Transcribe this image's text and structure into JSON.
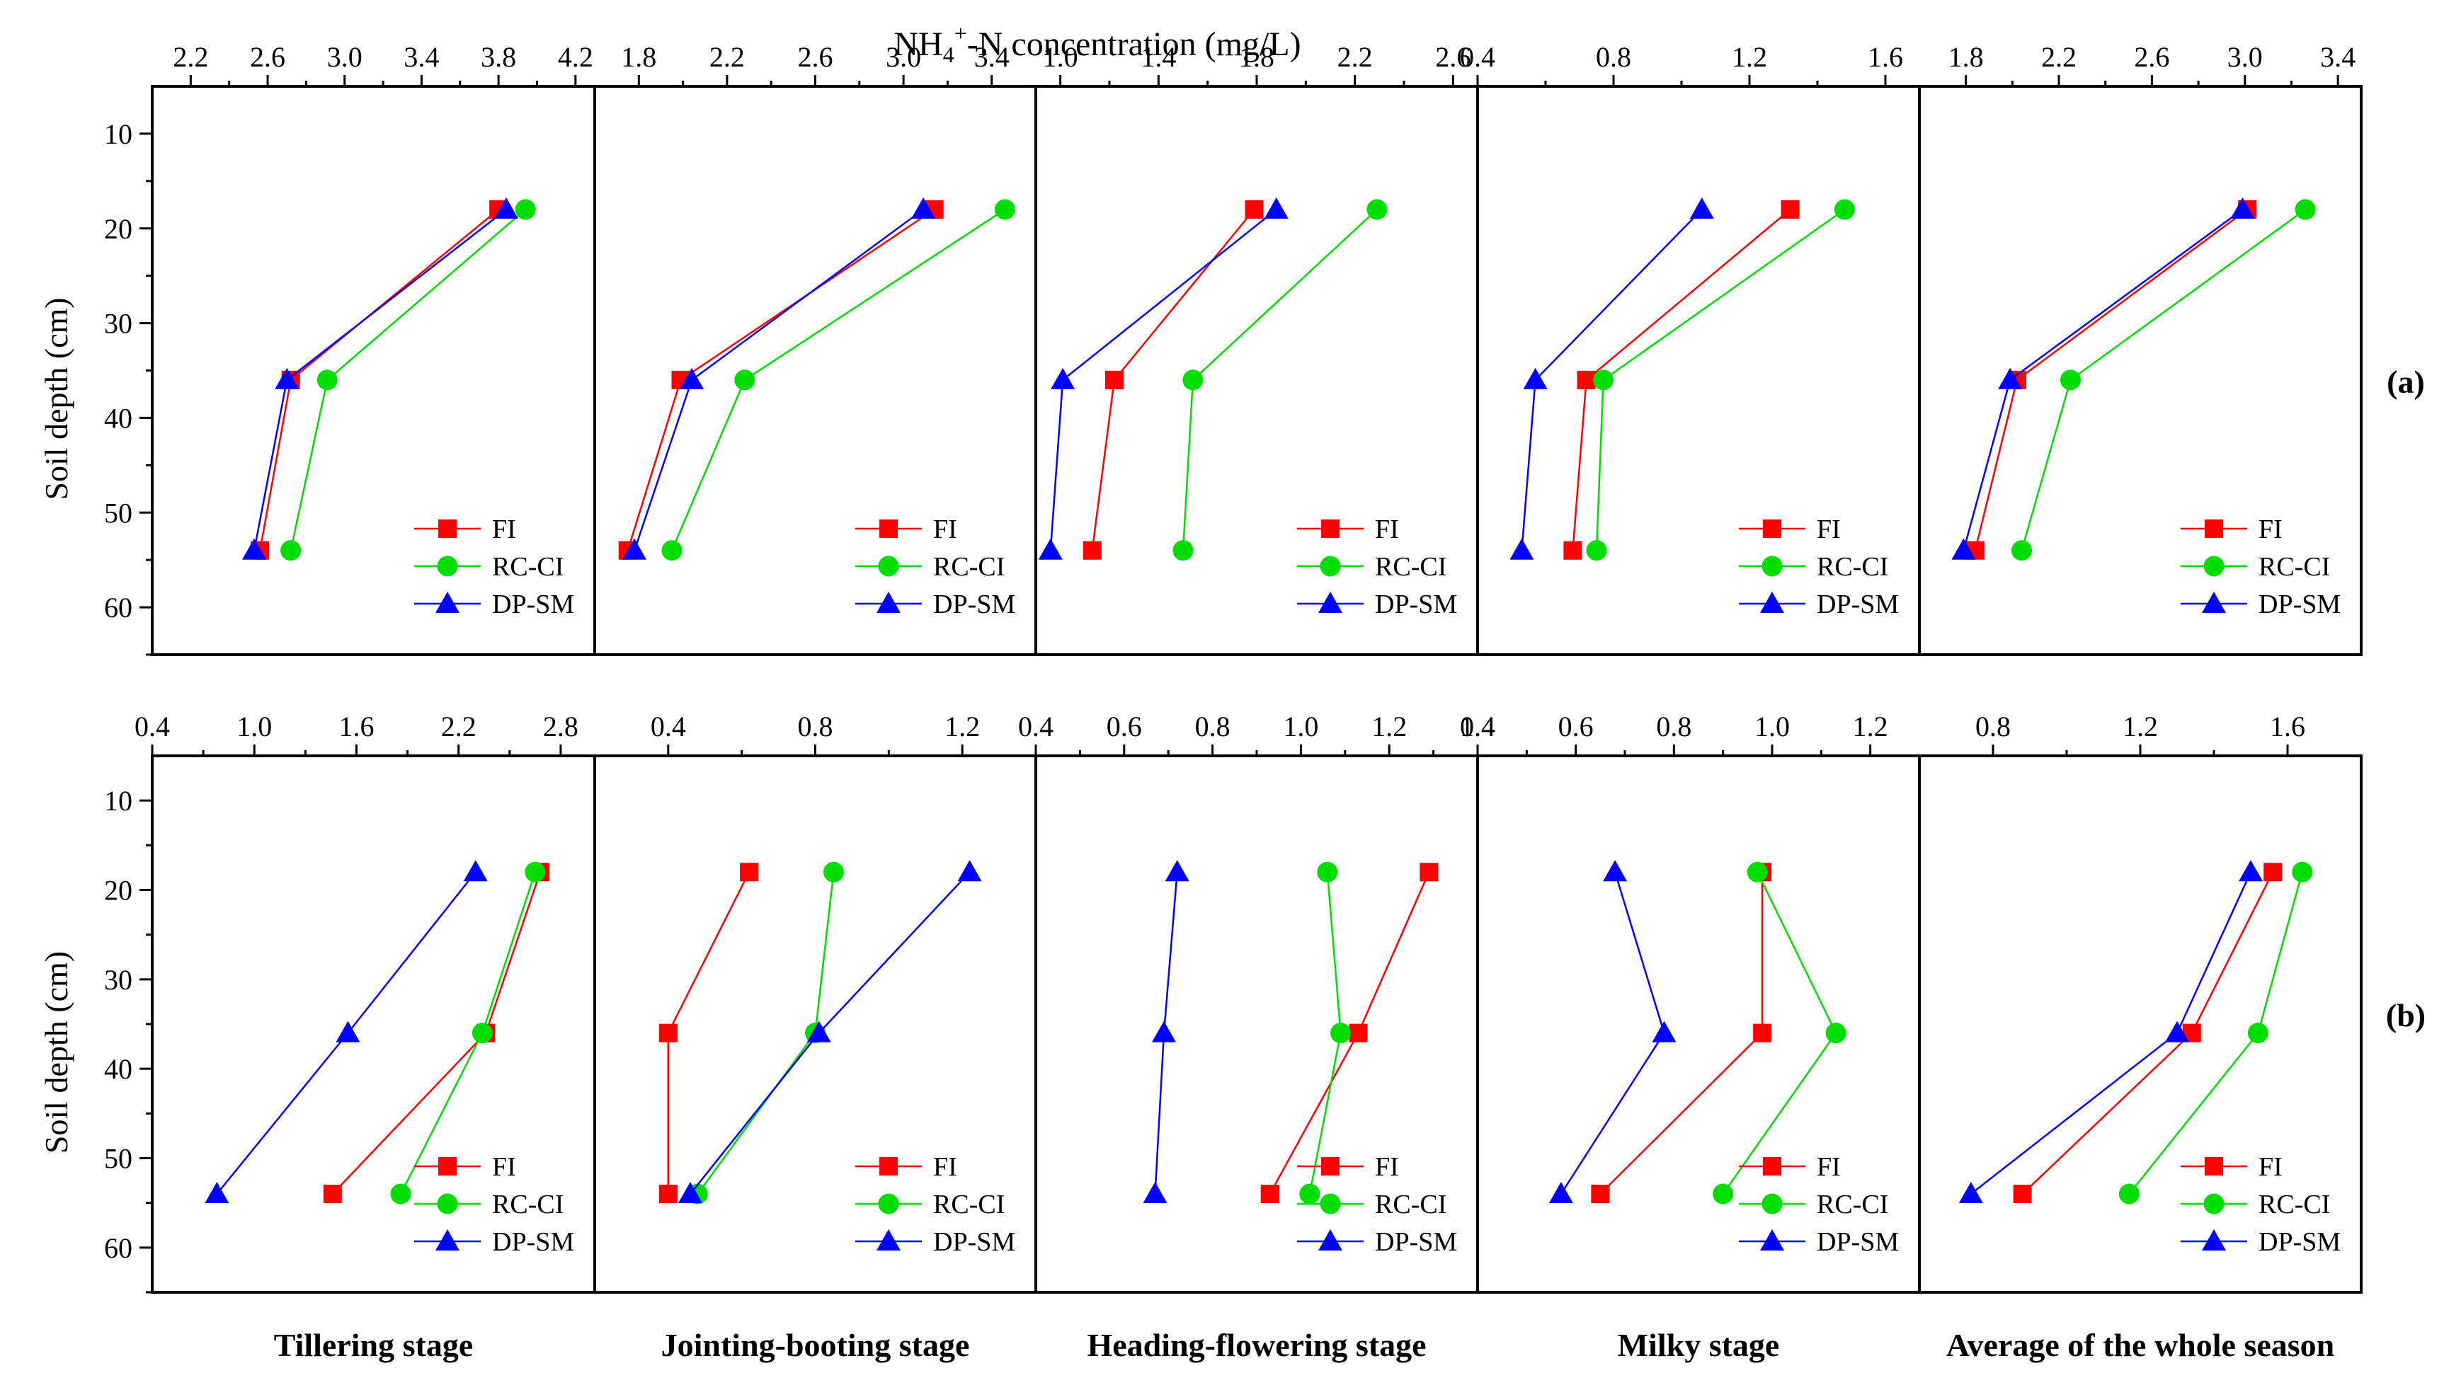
{
  "top_axis_title": "NH4+-N concentration (mg/L)",
  "y_axis_label": "Soil depth (cm)",
  "y_ticks": [
    10,
    20,
    30,
    40,
    50,
    60
  ],
  "y_range": [
    5,
    65
  ],
  "row_labels": [
    "(a)",
    "(b)"
  ],
  "column_labels": [
    "Tillering stage",
    "Jointing-booting stage",
    "Heading-flowering stage",
    "Milky stage",
    "Average of the whole season"
  ],
  "legend": [
    "FI",
    "RC-CI",
    "DP-SM"
  ],
  "series_colors": {
    "FI": "#ff0000",
    "RC-CI": "#00dd00",
    "DP-SM": "#0000ff"
  },
  "chart_data": [
    {
      "type": "line",
      "row": "(a)",
      "panel": "Tillering stage",
      "x_range": [
        2.0,
        4.3
      ],
      "x_ticks": [
        2.2,
        2.6,
        3.0,
        3.4,
        3.8,
        4.2
      ],
      "x_tick_labels": [
        "2.2",
        "2.6",
        "3.0",
        "3.4",
        "3.8",
        "4.2"
      ],
      "depths": [
        18,
        36,
        54
      ],
      "series": [
        {
          "name": "FI",
          "values": [
            3.8,
            2.72,
            2.56
          ]
        },
        {
          "name": "RC-CI",
          "values": [
            3.94,
            2.91,
            2.72
          ]
        },
        {
          "name": "DP-SM",
          "values": [
            3.84,
            2.7,
            2.53
          ]
        }
      ]
    },
    {
      "type": "line",
      "row": "(a)",
      "panel": "Jointing-booting stage",
      "x_range": [
        1.6,
        3.6
      ],
      "x_ticks": [
        1.8,
        2.2,
        2.6,
        3.0,
        3.4
      ],
      "x_tick_labels": [
        "1.8",
        "2.2",
        "2.6",
        "3.0",
        "3.4"
      ],
      "depths": [
        18,
        36,
        54
      ],
      "series": [
        {
          "name": "FI",
          "values": [
            3.14,
            1.99,
            1.75
          ]
        },
        {
          "name": "RC-CI",
          "values": [
            3.46,
            2.28,
            1.95
          ]
        },
        {
          "name": "DP-SM",
          "values": [
            3.09,
            2.04,
            1.78
          ]
        }
      ]
    },
    {
      "type": "line",
      "row": "(a)",
      "panel": "Heading-flowering stage",
      "x_range": [
        0.9,
        2.7
      ],
      "x_ticks": [
        1.0,
        1.4,
        1.8,
        2.2,
        2.6
      ],
      "x_tick_labels": [
        "1.0",
        "1.4",
        "1.8",
        "2.2",
        "2.6"
      ],
      "depths": [
        18,
        36,
        54
      ],
      "series": [
        {
          "name": "FI",
          "values": [
            1.79,
            1.22,
            1.13
          ]
        },
        {
          "name": "RC-CI",
          "values": [
            2.29,
            1.54,
            1.5
          ]
        },
        {
          "name": "DP-SM",
          "values": [
            1.88,
            1.01,
            0.96
          ]
        }
      ]
    },
    {
      "type": "line",
      "row": "(a)",
      "panel": "Milky stage",
      "x_range": [
        0.4,
        1.7
      ],
      "x_ticks": [
        0.4,
        0.8,
        1.2,
        1.6
      ],
      "x_tick_labels": [
        "0.4",
        "0.8",
        "1.2",
        "1.6"
      ],
      "depths": [
        18,
        36,
        54
      ],
      "series": [
        {
          "name": "FI",
          "values": [
            1.32,
            0.72,
            0.68
          ]
        },
        {
          "name": "RC-CI",
          "values": [
            1.48,
            0.77,
            0.75
          ]
        },
        {
          "name": "DP-SM",
          "values": [
            1.06,
            0.57,
            0.53
          ]
        }
      ]
    },
    {
      "type": "line",
      "row": "(a)",
      "panel": "Average of the whole season",
      "x_range": [
        1.6,
        3.5
      ],
      "x_ticks": [
        1.8,
        2.2,
        2.6,
        3.0,
        3.4
      ],
      "x_tick_labels": [
        "1.8",
        "2.2",
        "2.6",
        "3.0",
        "3.4"
      ],
      "depths": [
        18,
        36,
        54
      ],
      "series": [
        {
          "name": "FI",
          "values": [
            3.01,
            2.02,
            1.84
          ]
        },
        {
          "name": "RC-CI",
          "values": [
            3.26,
            2.25,
            2.04
          ]
        },
        {
          "name": "DP-SM",
          "values": [
            2.99,
            1.99,
            1.79
          ]
        }
      ]
    },
    {
      "type": "line",
      "row": "(b)",
      "panel": "Tillering stage",
      "x_range": [
        0.4,
        3.0
      ],
      "x_ticks": [
        0.4,
        1.0,
        1.6,
        2.2,
        2.8
      ],
      "x_tick_labels": [
        "0.4",
        "1.0",
        "1.6",
        "2.2",
        "2.8"
      ],
      "depths": [
        18,
        36,
        54
      ],
      "series": [
        {
          "name": "FI",
          "values": [
            2.68,
            2.36,
            1.46
          ]
        },
        {
          "name": "RC-CI",
          "values": [
            2.65,
            2.34,
            1.86
          ]
        },
        {
          "name": "DP-SM",
          "values": [
            2.3,
            1.55,
            0.78
          ]
        }
      ]
    },
    {
      "type": "line",
      "row": "(b)",
      "panel": "Jointing-booting stage",
      "x_range": [
        0.2,
        1.4
      ],
      "x_ticks": [
        0.4,
        0.8,
        1.2
      ],
      "x_tick_labels": [
        "0.4",
        "0.8",
        "1.2"
      ],
      "depths": [
        18,
        36,
        54
      ],
      "series": [
        {
          "name": "FI",
          "values": [
            0.62,
            0.4,
            0.4
          ]
        },
        {
          "name": "RC-CI",
          "values": [
            0.85,
            0.8,
            0.48
          ]
        },
        {
          "name": "DP-SM",
          "values": [
            1.22,
            0.81,
            0.46
          ]
        }
      ]
    },
    {
      "type": "line",
      "row": "(b)",
      "panel": "Heading-flowering stage",
      "x_range": [
        0.4,
        1.4
      ],
      "x_ticks": [
        0.4,
        0.6,
        0.8,
        1.0,
        1.2,
        1.4
      ],
      "x_tick_labels": [
        "0.4",
        "0.6",
        "0.8",
        "1.0",
        "1.2",
        "1.4"
      ],
      "depths": [
        18,
        36,
        54
      ],
      "series": [
        {
          "name": "FI",
          "values": [
            1.29,
            1.13,
            0.93
          ]
        },
        {
          "name": "RC-CI",
          "values": [
            1.06,
            1.09,
            1.02
          ]
        },
        {
          "name": "DP-SM",
          "values": [
            0.72,
            0.69,
            0.67
          ]
        }
      ]
    },
    {
      "type": "line",
      "row": "(b)",
      "panel": "Milky stage",
      "x_range": [
        0.4,
        1.3
      ],
      "x_ticks": [
        0.4,
        0.6,
        0.8,
        1.0,
        1.2
      ],
      "x_tick_labels": [
        "0.4",
        "0.6",
        "0.8",
        "1.0",
        "1.2"
      ],
      "depths": [
        18,
        36,
        54
      ],
      "series": [
        {
          "name": "FI",
          "values": [
            0.98,
            0.98,
            0.65
          ]
        },
        {
          "name": "RC-CI",
          "values": [
            0.97,
            1.13,
            0.9
          ]
        },
        {
          "name": "DP-SM",
          "values": [
            0.68,
            0.78,
            0.57
          ]
        }
      ]
    },
    {
      "type": "line",
      "row": "(b)",
      "panel": "Average of the whole season",
      "x_range": [
        0.6,
        1.8
      ],
      "x_ticks": [
        0.8,
        1.2,
        1.6
      ],
      "x_tick_labels": [
        "0.8",
        "1.2",
        "1.6"
      ],
      "depths": [
        18,
        36,
        54
      ],
      "series": [
        {
          "name": "FI",
          "values": [
            1.56,
            1.34,
            0.88
          ]
        },
        {
          "name": "RC-CI",
          "values": [
            1.64,
            1.52,
            1.17
          ]
        },
        {
          "name": "DP-SM",
          "values": [
            1.5,
            1.3,
            0.74
          ]
        }
      ]
    }
  ]
}
